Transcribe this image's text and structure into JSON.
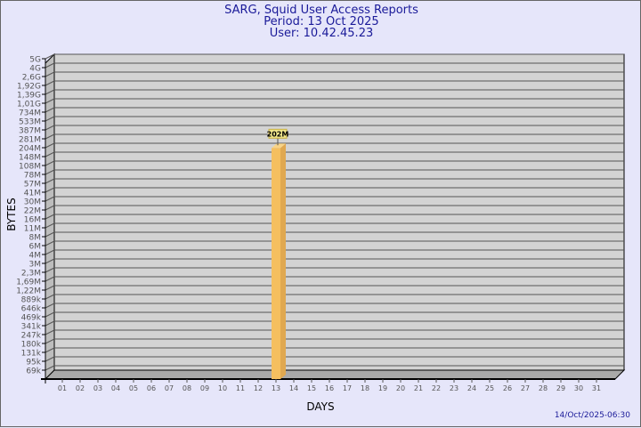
{
  "header": {
    "title": "SARG, Squid User Access Reports",
    "period": "Period: 13 Oct 2025",
    "user": "User: 10.42.45.23"
  },
  "footer": {
    "generated": "14/Oct/2025-06:30"
  },
  "colors": {
    "background": "#e6e6fa",
    "plot": "#d3d3d3",
    "bar": "#f5bf5f",
    "bar_side": "#e0a850",
    "label_box": "#f0e68c",
    "text": "#1a1a99"
  },
  "chart_data": {
    "type": "bar",
    "title": "SARG, Squid User Access Reports",
    "xlabel": "DAYS",
    "ylabel": "BYTES",
    "grid": true,
    "y_scale": "log",
    "y_tick_labels": [
      "5G",
      "4G",
      "2,6G",
      "1,92G",
      "1,39G",
      "1,01G",
      "734M",
      "533M",
      "387M",
      "281M",
      "204M",
      "148M",
      "108M",
      "78M",
      "57M",
      "41M",
      "30M",
      "22M",
      "16M",
      "11M",
      "8M",
      "6M",
      "4M",
      "3M",
      "2,3M",
      "1,69M",
      "1,22M",
      "889k",
      "646k",
      "469k",
      "341k",
      "247k",
      "180k",
      "131k",
      "95k",
      "69k"
    ],
    "categories": [
      "01",
      "02",
      "03",
      "04",
      "05",
      "06",
      "07",
      "08",
      "09",
      "10",
      "11",
      "12",
      "13",
      "14",
      "15",
      "16",
      "17",
      "18",
      "19",
      "20",
      "21",
      "22",
      "23",
      "24",
      "25",
      "26",
      "27",
      "28",
      "29",
      "30",
      "31"
    ],
    "bars": [
      {
        "category": "13",
        "value_bytes": 202000000,
        "label": "202M"
      }
    ]
  }
}
